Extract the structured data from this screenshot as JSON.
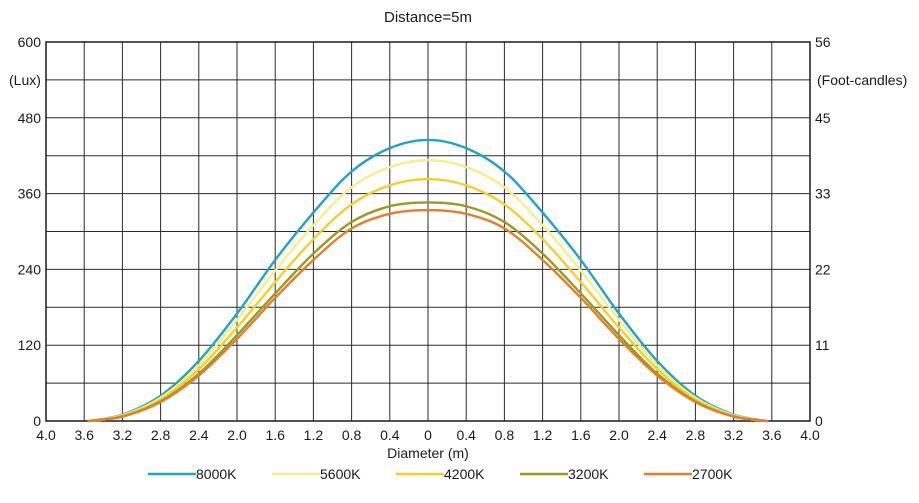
{
  "chart_data": {
    "type": "line",
    "title": "Distance=5m",
    "xlabel": "Diameter (m)",
    "ylabel_left": "(Lux)",
    "ylabel_right": "(Foot-candles)",
    "xlim": [
      -4.0,
      4.0
    ],
    "ylim": [
      0,
      600
    ],
    "grid": true,
    "x_tick_values": [
      -4.0,
      -3.6,
      -3.2,
      -2.8,
      -2.4,
      -2.0,
      -1.6,
      -1.2,
      -0.8,
      -0.4,
      0,
      0.4,
      0.8,
      1.2,
      1.6,
      2.0,
      2.4,
      2.8,
      3.2,
      3.6,
      4.0
    ],
    "x_tick_labels": [
      "4.0",
      "3.6",
      "3.2",
      "2.8",
      "2.4",
      "2.0",
      "1.6",
      "1.2",
      "0.8",
      "0.4",
      "0",
      "0.4",
      "0.8",
      "1.2",
      "1.6",
      "2.0",
      "2.4",
      "2.8",
      "3.2",
      "3.6",
      "4.0"
    ],
    "y_left_ticks": [
      {
        "value": 600,
        "label": "600"
      },
      {
        "value": 480,
        "label": "480"
      },
      {
        "value": 360,
        "label": "360"
      },
      {
        "value": 240,
        "label": "240"
      },
      {
        "value": 120,
        "label": "120"
      },
      {
        "value": 0,
        "label": "0"
      }
    ],
    "y_right_ticks": [
      {
        "value": 600,
        "label": "56"
      },
      {
        "value": 480,
        "label": "45"
      },
      {
        "value": 360,
        "label": "33"
      },
      {
        "value": 240,
        "label": "22"
      },
      {
        "value": 120,
        "label": "11"
      },
      {
        "value": 0,
        "label": "0"
      }
    ],
    "y_left_unit_value": 540,
    "y_right_unit_value": 540,
    "legend_position": "bottom",
    "x": [
      -3.55,
      -3.2,
      -2.8,
      -2.4,
      -2.0,
      -1.6,
      -1.2,
      -0.8,
      -0.4,
      0,
      0.4,
      0.8,
      1.2,
      1.6,
      2.0,
      2.4,
      2.8,
      3.2,
      3.55
    ],
    "series": [
      {
        "name": "8000K",
        "color": "#1fa3cc",
        "values": [
          0,
          10,
          40,
          95,
          170,
          255,
          330,
          395,
          432,
          445,
          432,
          395,
          330,
          255,
          170,
          95,
          40,
          10,
          0
        ]
      },
      {
        "name": "5600K",
        "color": "#f2ef8c",
        "values": [
          0,
          9,
          37,
          88,
          160,
          238,
          310,
          370,
          402,
          413,
          402,
          370,
          310,
          238,
          160,
          88,
          37,
          9,
          0
        ]
      },
      {
        "name": "4200K",
        "color": "#f3cf2a",
        "values": [
          0,
          8,
          34,
          82,
          148,
          220,
          288,
          343,
          373,
          383,
          373,
          343,
          288,
          220,
          148,
          82,
          34,
          8,
          0
        ]
      },
      {
        "name": "3200K",
        "color": "#9a9a1e",
        "values": [
          0,
          7,
          31,
          75,
          136,
          202,
          265,
          315,
          340,
          346,
          340,
          315,
          265,
          202,
          136,
          75,
          31,
          7,
          0
        ]
      },
      {
        "name": "2700K",
        "color": "#e27f2b",
        "values": [
          0,
          7,
          30,
          72,
          130,
          195,
          255,
          305,
          328,
          334,
          328,
          305,
          255,
          195,
          130,
          72,
          30,
          7,
          0
        ]
      }
    ]
  }
}
